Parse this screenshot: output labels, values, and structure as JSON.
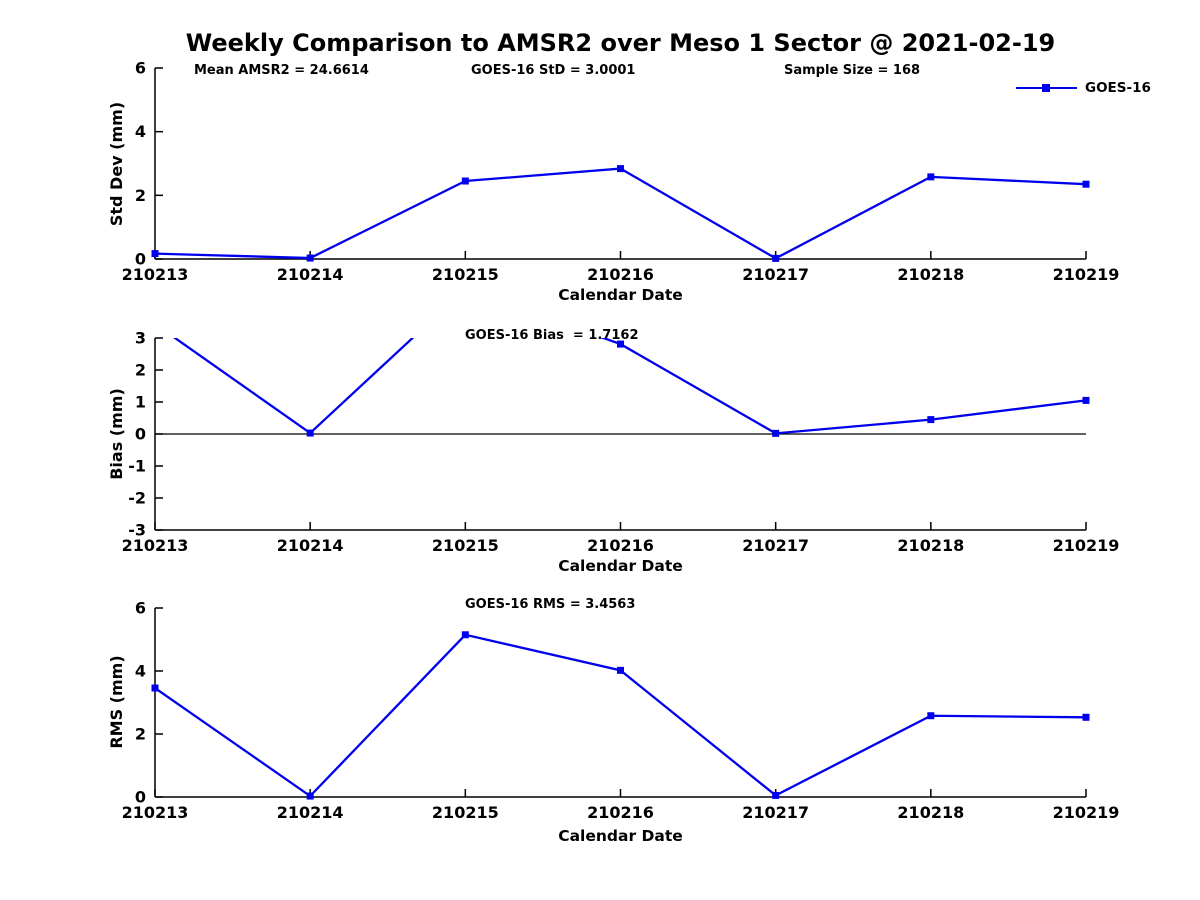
{
  "title": "Weekly Comparison to AMSR2 over Meso 1 Sector @ 2021-02-19",
  "header_stats": [
    {
      "label": "Mean AMSR2 = 24.6614"
    },
    {
      "label": "GOES-16 StD = 3.0001"
    },
    {
      "label": "Sample Size = 168"
    }
  ],
  "legend": {
    "label": "GOES-16",
    "color": "#0000ee",
    "marker": "square",
    "position": "top-right"
  },
  "colors": {
    "accent": "#0000ee",
    "axis": "#000000",
    "background": "#ffffff"
  },
  "chart_data": [
    {
      "type": "line",
      "name": "std-dev-panel",
      "ylabel": "Std Dev (mm)",
      "xlabel": "Calendar Date",
      "ylim": [
        0,
        6
      ],
      "yticks": [
        0,
        2,
        4,
        6
      ],
      "grid": false,
      "zero_line": false,
      "annotation": "",
      "categories": [
        "210213",
        "210214",
        "210215",
        "210216",
        "210217",
        "210218",
        "210219"
      ],
      "series": [
        {
          "name": "GOES-16",
          "color": "#0000ee",
          "marker": "square",
          "values": [
            0.17,
            0.03,
            2.45,
            2.84,
            0.02,
            2.58,
            2.35
          ]
        }
      ]
    },
    {
      "type": "line",
      "name": "bias-panel",
      "ylabel": "Bias (mm)",
      "xlabel": "Calendar Date",
      "ylim": [
        -3,
        3
      ],
      "yticks": [
        -3,
        -2,
        -1,
        0,
        1,
        2,
        3
      ],
      "grid": false,
      "zero_line": true,
      "annotation": "GOES-16 Bias  = 1.7162",
      "categories": [
        "210213",
        "210214",
        "210215",
        "210216",
        "210217",
        "210218",
        "210219"
      ],
      "series": [
        {
          "name": "GOES-16",
          "color": "#0000ee",
          "marker": "square",
          "values": [
            3.44,
            0.03,
            4.53,
            2.81,
            0.02,
            0.45,
            1.05
          ],
          "note": "values above ylim max 3 are clipped by the axes"
        }
      ]
    },
    {
      "type": "line",
      "name": "rms-panel",
      "ylabel": "RMS (mm)",
      "xlabel": "Calendar Date",
      "ylim": [
        0,
        6
      ],
      "yticks": [
        0,
        2,
        4,
        6
      ],
      "grid": false,
      "zero_line": false,
      "annotation": "GOES-16 RMS = 3.4563",
      "categories": [
        "210213",
        "210214",
        "210215",
        "210216",
        "210217",
        "210218",
        "210219"
      ],
      "series": [
        {
          "name": "GOES-16",
          "color": "#0000ee",
          "marker": "square",
          "values": [
            3.46,
            0.03,
            5.15,
            4.02,
            0.05,
            2.58,
            2.53
          ]
        }
      ]
    }
  ]
}
